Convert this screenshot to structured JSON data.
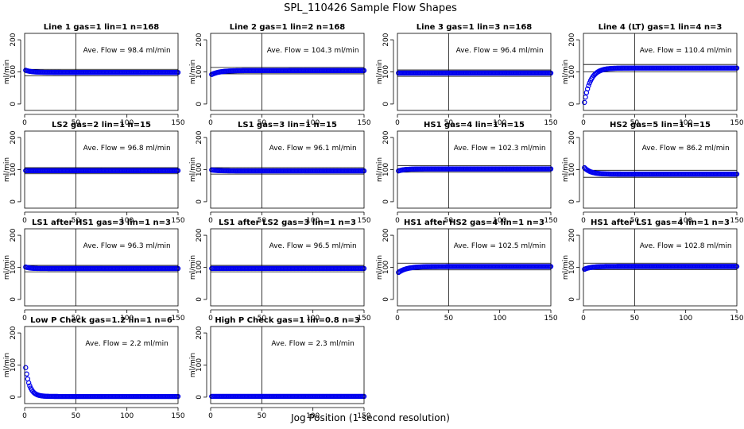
{
  "figure": {
    "title": "SPL_110426  Sample Flow Shapes",
    "xlabel": "Jog Position (1 second resolution)"
  },
  "colors": {
    "points": "#0000ee",
    "axes": "#000000",
    "background": "#ffffff"
  },
  "chart_data": [
    {
      "type": "scatter",
      "title": "Line 1 gas=1 lin=1 n=168",
      "ylabel": "ml/min",
      "annotation": "Ave. Flow =  98.4  ml/min",
      "xlim": [
        0,
        150
      ],
      "ylim": [
        -20,
        220
      ],
      "xticks": [
        0,
        50,
        100,
        150
      ],
      "yticks": [
        0,
        100,
        200
      ],
      "vline": 50,
      "hlines": [
        108,
        88
      ],
      "shape": {
        "kind": "decay",
        "start": 105,
        "end": 98.4,
        "tau": 6
      }
    },
    {
      "type": "scatter",
      "title": "Line 2 gas=1 lin=2 n=168",
      "ylabel": "ml/min",
      "annotation": "Ave. Flow =  104.3  ml/min",
      "xlim": [
        0,
        150
      ],
      "ylim": [
        -20,
        220
      ],
      "xticks": [
        0,
        50,
        100,
        150
      ],
      "yticks": [
        0,
        100,
        200
      ],
      "vline": 50,
      "hlines": [
        114,
        94
      ],
      "shape": {
        "kind": "decay",
        "start": 92,
        "end": 104.3,
        "tau": 8
      }
    },
    {
      "type": "scatter",
      "title": "Line 3 gas=1 lin=3 n=168",
      "ylabel": "ml/min",
      "annotation": "Ave. Flow =  96.4  ml/min",
      "xlim": [
        0,
        150
      ],
      "ylim": [
        -20,
        220
      ],
      "xticks": [
        0,
        50,
        100,
        150
      ],
      "yticks": [
        0,
        100,
        200
      ],
      "vline": 50,
      "hlines": [
        106,
        86
      ],
      "shape": {
        "kind": "flat",
        "start": 96.4,
        "end": 96.4,
        "tau": 5
      }
    },
    {
      "type": "scatter",
      "title": "Line 4 (LT) gas=1 lin=4 n=3",
      "ylabel": "ml/min",
      "annotation": "Ave. Flow =  110.4  ml/min",
      "xlim": [
        0,
        150
      ],
      "ylim": [
        -20,
        220
      ],
      "xticks": [
        0,
        50,
        100,
        150
      ],
      "yticks": [
        0,
        100,
        200
      ],
      "vline": 50,
      "hlines": [
        123,
        100
      ],
      "shape": {
        "kind": "decay",
        "start": 5,
        "end": 112,
        "tau": 6
      }
    },
    {
      "type": "scatter",
      "title": "LS2 gas=2 lin=1 n=15",
      "ylabel": "ml/min",
      "annotation": "Ave. Flow =  96.8  ml/min",
      "xlim": [
        0,
        150
      ],
      "ylim": [
        -20,
        220
      ],
      "xticks": [
        0,
        50,
        100,
        150
      ],
      "yticks": [
        0,
        100,
        200
      ],
      "vline": 50,
      "hlines": [
        106,
        87
      ],
      "shape": {
        "kind": "flat",
        "start": 96.8,
        "end": 96.8,
        "tau": 5
      }
    },
    {
      "type": "scatter",
      "title": "LS1 gas=3 lin=1 n=15",
      "ylabel": "ml/min",
      "annotation": "Ave. Flow =  96.1  ml/min",
      "xlim": [
        0,
        150
      ],
      "ylim": [
        -20,
        220
      ],
      "xticks": [
        0,
        50,
        100,
        150
      ],
      "yticks": [
        0,
        100,
        200
      ],
      "vline": 50,
      "hlines": [
        106,
        86
      ],
      "shape": {
        "kind": "decay",
        "start": 99,
        "end": 96.1,
        "tau": 6
      }
    },
    {
      "type": "scatter",
      "title": "HS1 gas=4 lin=1 n=15",
      "ylabel": "ml/min",
      "annotation": "Ave. Flow =  102.3  ml/min",
      "xlim": [
        0,
        150
      ],
      "ylim": [
        -20,
        220
      ],
      "xticks": [
        0,
        50,
        100,
        150
      ],
      "yticks": [
        0,
        100,
        200
      ],
      "vline": 50,
      "hlines": [
        112,
        92
      ],
      "shape": {
        "kind": "decay",
        "start": 96,
        "end": 102.3,
        "tau": 6
      }
    },
    {
      "type": "scatter",
      "title": "HS2 gas=5 lin=1 n=15",
      "ylabel": "ml/min",
      "annotation": "Ave. Flow =  86.2  ml/min",
      "xlim": [
        0,
        150
      ],
      "ylim": [
        -20,
        220
      ],
      "xticks": [
        0,
        50,
        100,
        150
      ],
      "yticks": [
        0,
        100,
        200
      ],
      "vline": 50,
      "hlines": [
        98,
        76
      ],
      "shape": {
        "kind": "decay",
        "start": 106,
        "end": 86,
        "tau": 6
      }
    },
    {
      "type": "scatter",
      "title": "LS1 after HS1 gas=3 lin=1 n=3",
      "ylabel": "ml/min",
      "annotation": "Ave. Flow =  96.3  ml/min",
      "xlim": [
        0,
        150
      ],
      "ylim": [
        -20,
        220
      ],
      "xticks": [
        0,
        50,
        100,
        150
      ],
      "yticks": [
        0,
        100,
        200
      ],
      "vline": 50,
      "hlines": [
        106,
        86
      ],
      "shape": {
        "kind": "decay",
        "start": 101,
        "end": 96.3,
        "tau": 4
      }
    },
    {
      "type": "scatter",
      "title": "LS1 after LS2 gas=3 lin=1 n=3",
      "ylabel": "ml/min",
      "annotation": "Ave. Flow =  96.5  ml/min",
      "xlim": [
        0,
        150
      ],
      "ylim": [
        -20,
        220
      ],
      "xticks": [
        0,
        50,
        100,
        150
      ],
      "yticks": [
        0,
        100,
        200
      ],
      "vline": 50,
      "hlines": [
        106,
        86
      ],
      "shape": {
        "kind": "flat",
        "start": 96.5,
        "end": 96.5,
        "tau": 5
      }
    },
    {
      "type": "scatter",
      "title": "HS1 after HS2 gas=4 lin=1 n=3",
      "ylabel": "ml/min",
      "annotation": "Ave. Flow =  102.5  ml/min",
      "xlim": [
        0,
        150
      ],
      "ylim": [
        -20,
        220
      ],
      "xticks": [
        0,
        50,
        100,
        150
      ],
      "yticks": [
        0,
        100,
        200
      ],
      "vline": 50,
      "hlines": [
        113,
        92
      ],
      "shape": {
        "kind": "decay",
        "start": 84,
        "end": 102.5,
        "tau": 8
      }
    },
    {
      "type": "scatter",
      "title": "HS1 after LS1 gas=4 lin=1 n=3",
      "ylabel": "ml/min",
      "annotation": "Ave. Flow =  102.8  ml/min",
      "xlim": [
        0,
        150
      ],
      "ylim": [
        -20,
        220
      ],
      "xticks": [
        0,
        50,
        100,
        150
      ],
      "yticks": [
        0,
        100,
        200
      ],
      "vline": 50,
      "hlines": [
        113,
        93
      ],
      "shape": {
        "kind": "decay",
        "start": 94,
        "end": 102.8,
        "tau": 6
      }
    },
    {
      "type": "scatter",
      "title": "Low P Check gas=1.2 lin=1 n=6",
      "ylabel": "ml/min",
      "annotation": "Ave. Flow =  2.2  ml/min",
      "xlim": [
        0,
        150
      ],
      "ylim": [
        -20,
        220
      ],
      "xticks": [
        0,
        50,
        100,
        150
      ],
      "yticks": [
        0,
        100,
        200
      ],
      "vline": 50,
      "hlines": [],
      "shape": {
        "kind": "decay",
        "start": 92,
        "end": 2.2,
        "tau": 4
      }
    },
    {
      "type": "scatter",
      "title": "High P Check gas=1 lin=0.8 n=3",
      "ylabel": "ml/min",
      "annotation": "Ave. Flow =  2.3  ml/min",
      "xlim": [
        0,
        150
      ],
      "ylim": [
        -20,
        220
      ],
      "xticks": [
        0,
        50,
        100,
        150
      ],
      "yticks": [
        0,
        100,
        200
      ],
      "vline": 50,
      "hlines": [],
      "shape": {
        "kind": "flat",
        "start": 2.3,
        "end": 2.3,
        "tau": 5
      }
    }
  ]
}
